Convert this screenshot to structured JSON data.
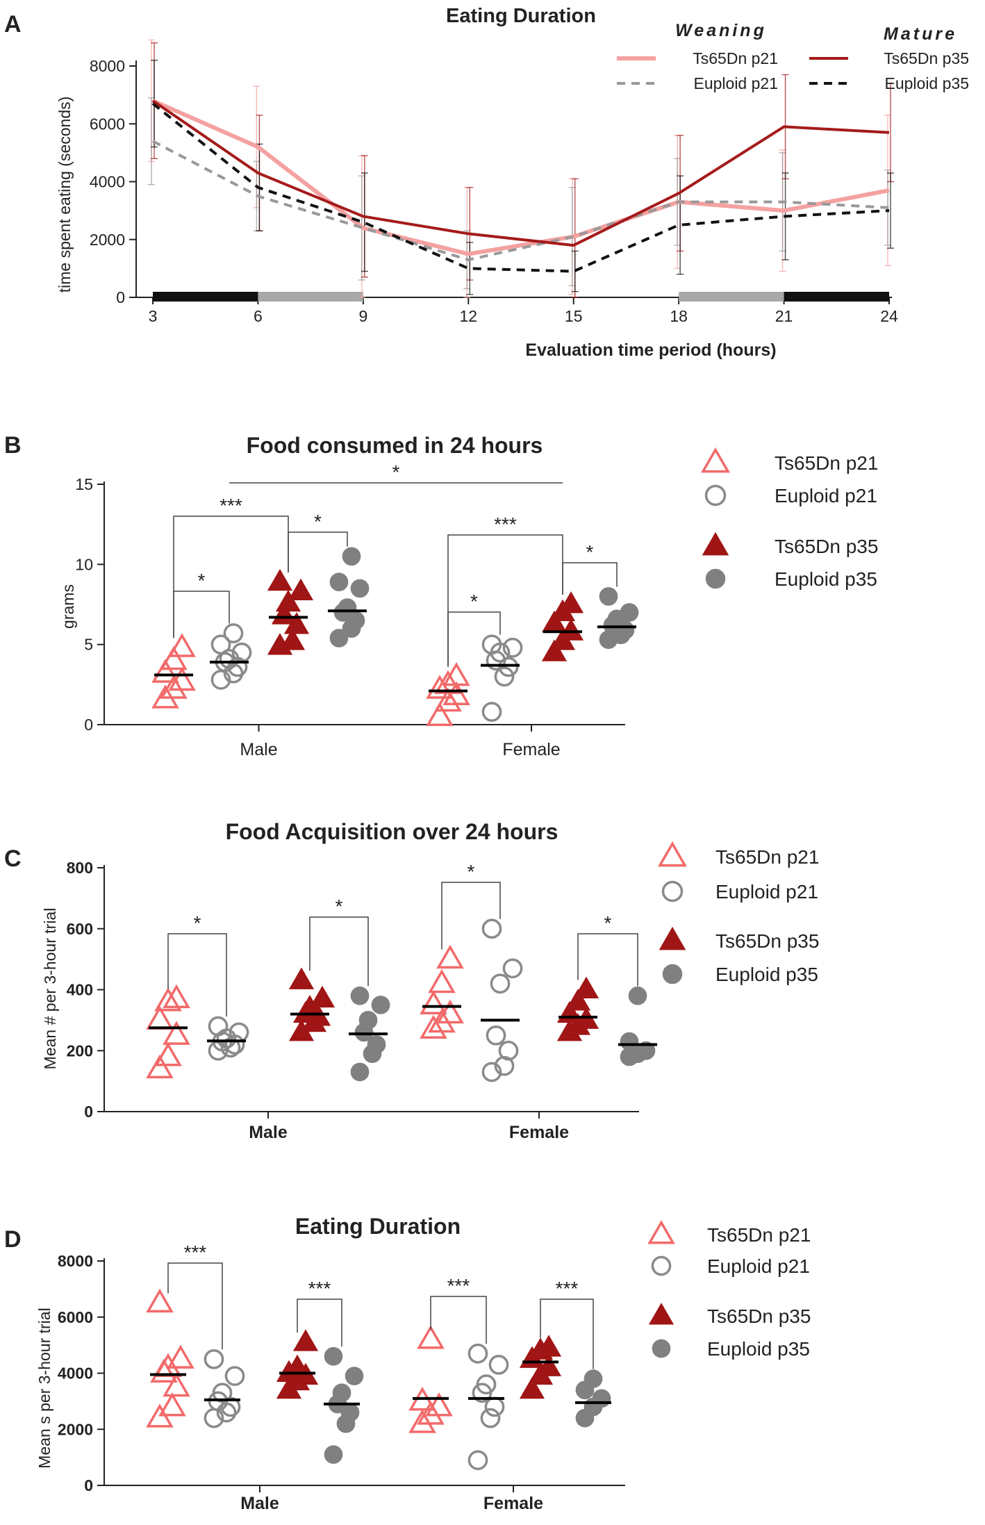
{
  "colors": {
    "ts21": "#f26a6a",
    "eu21": "#8a8a8a",
    "ts35": "#a01515",
    "eu35": "#808080",
    "line_ts21": "#f4a1a1",
    "line_eu21": "#999999",
    "line_ts35": "#a51a1a",
    "line_eu35": "#111111",
    "bar_dark": "#111111",
    "bar_light": "#a8a8a8"
  },
  "chart_data": [
    {
      "panel": "A",
      "type": "line",
      "title": "Eating Duration",
      "xlabel": "Evaluation time period (hours)",
      "ylabel": "time spent eating (seconds)",
      "xlim": [
        3,
        24
      ],
      "ylim": [
        0,
        8000
      ],
      "xticks": [
        3,
        6,
        9,
        12,
        15,
        18,
        21,
        24
      ],
      "yticks": [
        0,
        2000,
        4000,
        6000,
        8000
      ],
      "legend_groups": [
        "Weaning",
        "Mature"
      ],
      "series": [
        {
          "name": "Ts65Dn p21",
          "style": "line_ts21",
          "dash": false,
          "x": [
            3,
            6,
            9,
            12,
            15,
            18,
            21,
            24
          ],
          "y": [
            6800,
            5200,
            2400,
            1500,
            2100,
            3300,
            3000,
            3700
          ],
          "err": [
            2100,
            2100,
            2500,
            2300,
            2000,
            2300,
            2100,
            2600
          ]
        },
        {
          "name": "Euploid p21",
          "style": "line_eu21",
          "dash": true,
          "x": [
            3,
            6,
            9,
            12,
            15,
            18,
            21,
            24
          ],
          "y": [
            5400,
            3500,
            2400,
            1300,
            2100,
            3300,
            3300,
            3100
          ],
          "err": [
            1500,
            1200,
            1800,
            1000,
            1700,
            1500,
            1700,
            1300
          ]
        },
        {
          "name": "Ts65Dn p35",
          "style": "line_ts35",
          "dash": false,
          "x": [
            3,
            6,
            9,
            12,
            15,
            18,
            21,
            24
          ],
          "y": [
            6800,
            4300,
            2800,
            2200,
            1800,
            3600,
            5900,
            5700
          ],
          "err": [
            2000,
            2000,
            2100,
            1600,
            2300,
            2000,
            1800,
            1700
          ]
        },
        {
          "name": "Euploid p35",
          "style": "line_eu35",
          "dash": true,
          "x": [
            3,
            6,
            9,
            12,
            15,
            18,
            21,
            24
          ],
          "y": [
            6700,
            3800,
            2600,
            1000,
            900,
            2500,
            2800,
            3000
          ],
          "err": [
            1500,
            1500,
            1700,
            900,
            700,
            1700,
            1500,
            1300
          ]
        }
      ]
    },
    {
      "panel": "B",
      "type": "scatter",
      "title": "Food consumed in 24 hours",
      "ylabel": "grams",
      "ylim": [
        0,
        15
      ],
      "yticks": [
        0,
        5,
        10,
        15
      ],
      "categories": [
        "Male",
        "Female"
      ],
      "series": [
        {
          "name": "Ts65Dn p21",
          "style": "ts21",
          "marker": "triangle-open",
          "values": [
            [
              1.6,
              2.2,
              2.7,
              3.2,
              4.0,
              4.8
            ],
            [
              0.5,
              1.4,
              1.8,
              2.2,
              2.5,
              3.0
            ]
          ],
          "means": [
            3.1,
            2.1
          ]
        },
        {
          "name": "Euploid p21",
          "style": "eu21",
          "marker": "circle-open",
          "values": [
            [
              2.8,
              3.2,
              3.6,
              3.9,
              4.1,
              4.5,
              5.0,
              5.7
            ],
            [
              0.8,
              3.0,
              3.6,
              4.0,
              4.5,
              4.8,
              5.0
            ]
          ],
          "means": [
            3.9,
            3.7
          ]
        },
        {
          "name": "Ts65Dn p35",
          "style": "ts35",
          "marker": "triangle",
          "values": [
            [
              4.9,
              5.2,
              6.2,
              6.8,
              7.6,
              8.3,
              8.9
            ],
            [
              4.5,
              5.2,
              5.8,
              6.3,
              7.0,
              7.5
            ]
          ],
          "means": [
            6.7,
            5.8
          ]
        },
        {
          "name": "Euploid p35",
          "style": "eu35",
          "marker": "circle",
          "values": [
            [
              5.4,
              6.0,
              6.5,
              7.0,
              7.3,
              8.5,
              8.9,
              10.5
            ],
            [
              5.3,
              5.6,
              5.9,
              6.2,
              6.6,
              7.0,
              8.0
            ]
          ],
          "means": [
            7.1,
            6.1
          ]
        }
      ],
      "significance": [
        {
          "label": "*",
          "from": [
            0,
            0
          ],
          "to": [
            0,
            1
          ]
        },
        {
          "label": "*",
          "from": [
            0,
            2
          ],
          "to": [
            0,
            3
          ]
        },
        {
          "label": "***",
          "from": [
            0,
            0
          ],
          "to": [
            0,
            2
          ]
        },
        {
          "label": "*",
          "from": [
            1,
            0
          ],
          "to": [
            1,
            1
          ]
        },
        {
          "label": "*",
          "from": [
            1,
            2
          ],
          "to": [
            1,
            3
          ]
        },
        {
          "label": "***",
          "from": [
            1,
            0
          ],
          "to": [
            1,
            2
          ]
        },
        {
          "label": "*",
          "from": [
            0,
            1
          ],
          "to": [
            1,
            2
          ]
        }
      ]
    },
    {
      "panel": "C",
      "type": "scatter",
      "title": "Food Acquisition over 24 hours",
      "ylabel": "Mean # per 3-hour trial",
      "ylim": [
        0,
        800
      ],
      "yticks": [
        0,
        200,
        400,
        600,
        800
      ],
      "categories": [
        "Male",
        "Female"
      ],
      "series": [
        {
          "name": "Ts65Dn p21",
          "style": "ts21",
          "marker": "triangle-open",
          "values": [
            [
              140,
              180,
              250,
              300,
              360,
              370
            ],
            [
              270,
              290,
              320,
              350,
              420,
              500
            ]
          ],
          "means": [
            275,
            345
          ]
        },
        {
          "name": "Euploid p21",
          "style": "eu21",
          "marker": "circle-open",
          "values": [
            [
              200,
              210,
              220,
              230,
              240,
              260,
              280
            ],
            [
              130,
              150,
              200,
              250,
              420,
              470,
              600
            ]
          ],
          "means": [
            232,
            300
          ]
        },
        {
          "name": "Ts65Dn p35",
          "style": "ts35",
          "marker": "triangle",
          "values": [
            [
              260,
              290,
              310,
              320,
              340,
              370,
              430
            ],
            [
              260,
              280,
              300,
              320,
              360,
              400
            ]
          ],
          "means": [
            320,
            310
          ]
        },
        {
          "name": "Euploid p35",
          "style": "eu35",
          "marker": "circle",
          "values": [
            [
              130,
              190,
              220,
              260,
              300,
              350,
              380
            ],
            [
              180,
              190,
              200,
              230,
              380
            ]
          ],
          "means": [
            255,
            220
          ]
        }
      ],
      "significance": [
        {
          "label": "*",
          "from": [
            0,
            0
          ],
          "to": [
            0,
            1
          ]
        },
        {
          "label": "*",
          "from": [
            0,
            2
          ],
          "to": [
            0,
            3
          ]
        },
        {
          "label": "*",
          "from": [
            1,
            0
          ],
          "to": [
            1,
            1
          ]
        },
        {
          "label": "*",
          "from": [
            1,
            2
          ],
          "to": [
            1,
            3
          ]
        }
      ]
    },
    {
      "panel": "D",
      "type": "scatter",
      "title": "Eating Duration",
      "ylabel": "Mean s per 3-hour trial",
      "ylim": [
        0,
        8000
      ],
      "yticks": [
        0,
        2000,
        4000,
        6000,
        8000
      ],
      "categories": [
        "Male",
        "Female"
      ],
      "series": [
        {
          "name": "Ts65Dn p21",
          "style": "ts21",
          "marker": "triangle-open",
          "values": [
            [
              2400,
              2800,
              3500,
              4000,
              4200,
              4500,
              6500
            ],
            [
              2200,
              2500,
              2800,
              3000,
              5200
            ]
          ],
          "means": [
            3950,
            3100
          ]
        },
        {
          "name": "Euploid p21",
          "style": "eu21",
          "marker": "circle-open",
          "values": [
            [
              2400,
              2600,
              2800,
              3000,
              3300,
              3900,
              4500
            ],
            [
              900,
              2400,
              2800,
              3300,
              3600,
              4300,
              4700
            ]
          ],
          "means": [
            3050,
            3100
          ]
        },
        {
          "name": "Ts65Dn p35",
          "style": "ts35",
          "marker": "triangle",
          "values": [
            [
              3400,
              3700,
              3900,
              4000,
              4200,
              5100
            ],
            [
              3400,
              3900,
              4200,
              4500,
              4800,
              4900
            ]
          ],
          "means": [
            4000,
            4400
          ]
        },
        {
          "name": "Euploid p35",
          "style": "eu35",
          "marker": "circle",
          "values": [
            [
              1100,
              2200,
              2600,
              2900,
              3300,
              3900,
              4600
            ],
            [
              2400,
              2800,
              3100,
              3400,
              3800
            ]
          ],
          "means": [
            2900,
            2950
          ]
        }
      ],
      "significance": [
        {
          "label": "***",
          "from": [
            0,
            0
          ],
          "to": [
            0,
            1
          ]
        },
        {
          "label": "***",
          "from": [
            0,
            2
          ],
          "to": [
            0,
            3
          ]
        },
        {
          "label": "***",
          "from": [
            1,
            0
          ],
          "to": [
            1,
            1
          ]
        },
        {
          "label": "***",
          "from": [
            1,
            2
          ],
          "to": [
            1,
            3
          ]
        }
      ]
    }
  ]
}
